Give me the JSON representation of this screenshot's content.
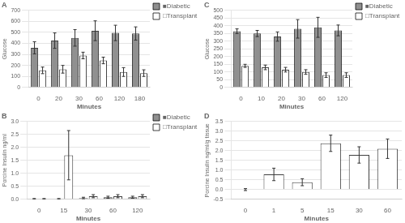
{
  "chart_data": [
    {
      "type": "bar",
      "title": "A",
      "categories": [
        "0",
        "20",
        "30",
        "60",
        "120",
        "180"
      ],
      "series": [
        {
          "name": "■Diabetic",
          "color": "#909090",
          "values": [
            360,
            425,
            450,
            515,
            495,
            490
          ],
          "errors": [
            55,
            70,
            75,
            90,
            70,
            60
          ]
        },
        {
          "name": "□Transplant",
          "color": "#ffffff",
          "values": [
            155,
            165,
            290,
            245,
            140,
            130
          ],
          "errors": [
            30,
            35,
            30,
            30,
            40,
            30
          ]
        }
      ],
      "xlabel": "Minutes",
      "ylabel": "Glucose",
      "ylim": [
        0,
        700
      ],
      "yticks": [
        0,
        100,
        200,
        300,
        400,
        500,
        600,
        700
      ],
      "grid": true,
      "legend": "upper right"
    },
    {
      "type": "bar",
      "title": "B",
      "categories": [
        "0",
        "15",
        "30",
        "60",
        "120"
      ],
      "series": [
        {
          "name": "■Diabetic",
          "color": "#909090",
          "values": [
            0.02,
            0.02,
            0.05,
            0.08,
            0.08
          ],
          "errors": [
            0.01,
            0.01,
            0.03,
            0.04,
            0.04
          ]
        },
        {
          "name": "□Transplant",
          "color": "#ffffff",
          "values": [
            0.02,
            1.7,
            0.12,
            0.12,
            0.12
          ],
          "errors": [
            0.01,
            0.95,
            0.06,
            0.06,
            0.06
          ]
        }
      ],
      "xlabel": "Minutes",
      "ylabel": "Porcine Insulin ng/ml",
      "ylim": [
        0,
        3
      ],
      "yticks": [
        {
          "value": 0,
          "label": "0.0"
        },
        0.5,
        {
          "value": 1,
          "label": "1.0"
        },
        1.5,
        {
          "value": 2,
          "label": "2.0"
        },
        2.5,
        {
          "value": 3,
          "label": "3.0"
        }
      ],
      "grid": true,
      "legend": "upper right"
    },
    {
      "type": "bar",
      "title": "C",
      "categories": [
        "0",
        "10",
        "20",
        "30",
        "60",
        "120"
      ],
      "series": [
        {
          "name": "■Diabetic",
          "color": "#909090",
          "values": [
            365,
            350,
            330,
            380,
            390,
            370
          ],
          "errors": [
            15,
            20,
            30,
            60,
            65,
            35
          ]
        },
        {
          "name": "□Transplant",
          "color": "#ffffff",
          "values": [
            140,
            130,
            115,
            100,
            80,
            80
          ],
          "errors": [
            10,
            15,
            15,
            15,
            15,
            15
          ]
        }
      ],
      "xlabel": "Minutes",
      "ylabel": "Glucose",
      "ylim": [
        0,
        500
      ],
      "yticks": [
        0,
        50,
        100,
        150,
        200,
        250,
        300,
        350,
        400,
        450,
        500
      ],
      "grid": true,
      "legend": "upper right"
    },
    {
      "type": "bar",
      "title": "D",
      "categories": [
        "0",
        "1",
        "5",
        "15",
        "30",
        "60"
      ],
      "series": [
        {
          "color": "#ffffff",
          "values": [
            0.0,
            0.78,
            0.38,
            2.38,
            1.78,
            2.1
          ],
          "errors": [
            0.05,
            0.32,
            0.18,
            0.42,
            0.42,
            0.5
          ]
        }
      ],
      "xlabel": "Minutes",
      "ylabel": "Porcine Insulin ng/ml/g tissue",
      "ylim": [
        -0.5,
        3.5
      ],
      "yticks": [
        -0.5,
        {
          "value": 0,
          "label": "0.0"
        },
        0.5,
        {
          "value": 1,
          "label": "1.0"
        },
        1.5,
        {
          "value": 2,
          "label": "2.0"
        },
        2.5,
        {
          "value": 3,
          "label": "3.0"
        },
        3.5
      ],
      "grid": true
    }
  ]
}
